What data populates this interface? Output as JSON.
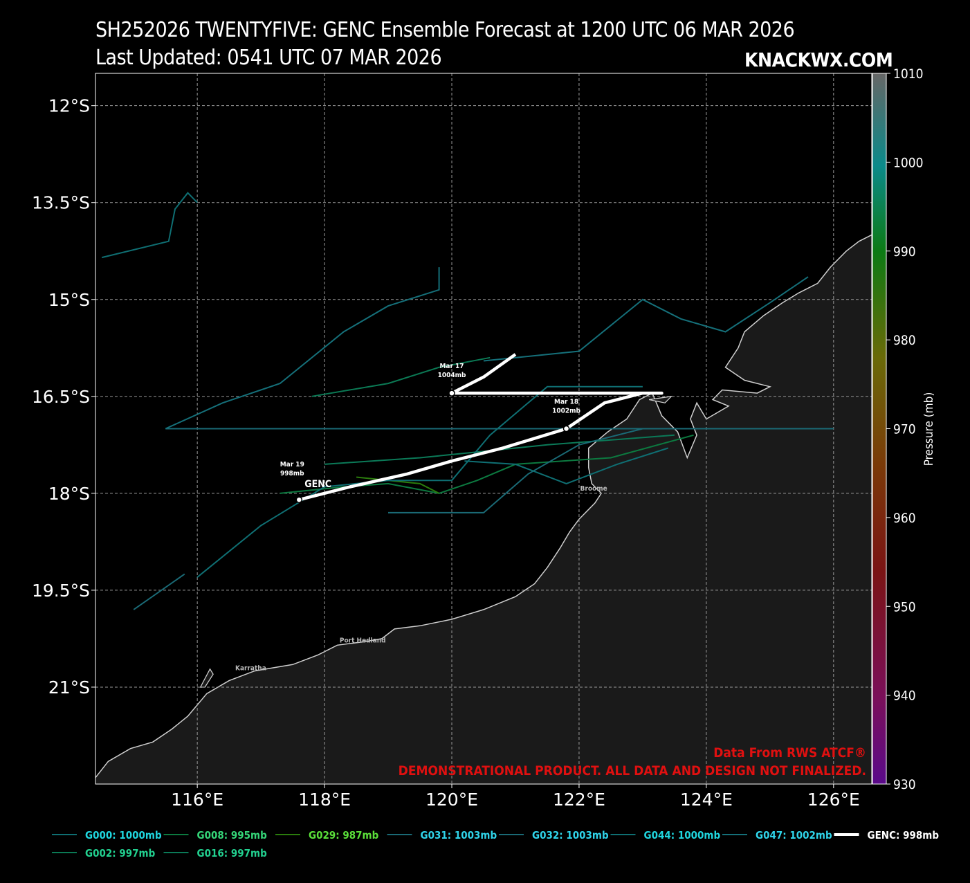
{
  "header": {
    "title": "SH252026 TWENTYFIVE: GENC Ensemble Forecast at 1200 UTC 06 MAR 2026",
    "updated": "Last Updated: 0541 UTC 07 MAR 2026",
    "brand": "KNACKWX.COM"
  },
  "map": {
    "lon_range": [
      114.4,
      126.6
    ],
    "lat_range": [
      -22.5,
      -11.5
    ],
    "lat_ticks": [
      {
        "v": -12,
        "label": "12°S"
      },
      {
        "v": -13.5,
        "label": "13.5°S"
      },
      {
        "v": -15,
        "label": "15°S"
      },
      {
        "v": -16.5,
        "label": "16.5°S"
      },
      {
        "v": -18,
        "label": "18°S"
      },
      {
        "v": -19.5,
        "label": "19.5°S"
      },
      {
        "v": -21,
        "label": "21°S"
      }
    ],
    "lon_ticks": [
      {
        "v": 116,
        "label": "116°E"
      },
      {
        "v": 118,
        "label": "118°E"
      },
      {
        "v": 120,
        "label": "120°E"
      },
      {
        "v": 122,
        "label": "122°E"
      },
      {
        "v": 124,
        "label": "124°E"
      },
      {
        "v": 126,
        "label": "126°E"
      }
    ],
    "grid": true,
    "ocean_color": "#000000",
    "land_color": "#1a1a1a",
    "coast_color": "#cfcfcf",
    "places": [
      {
        "name": "Broome",
        "lon": 122.23,
        "lat": -17.96
      },
      {
        "name": "Port Hedland",
        "lon": 118.6,
        "lat": -20.31
      },
      {
        "name": "Karratha",
        "lon": 116.84,
        "lat": -20.74
      }
    ],
    "coastline": [
      [
        114.4,
        -22.4
      ],
      [
        114.6,
        -22.15
      ],
      [
        114.95,
        -21.95
      ],
      [
        115.3,
        -21.85
      ],
      [
        115.6,
        -21.65
      ],
      [
        115.85,
        -21.45
      ],
      [
        116.15,
        -21.1
      ],
      [
        116.5,
        -20.9
      ],
      [
        116.9,
        -20.75
      ],
      [
        117.2,
        -20.7
      ],
      [
        117.5,
        -20.65
      ],
      [
        117.9,
        -20.5
      ],
      [
        118.2,
        -20.35
      ],
      [
        118.6,
        -20.3
      ],
      [
        118.9,
        -20.25
      ],
      [
        119.1,
        -20.1
      ],
      [
        119.5,
        -20.05
      ],
      [
        120.0,
        -19.95
      ],
      [
        120.5,
        -19.8
      ],
      [
        121.0,
        -19.6
      ],
      [
        121.3,
        -19.4
      ],
      [
        121.5,
        -19.15
      ],
      [
        121.7,
        -18.85
      ],
      [
        121.85,
        -18.6
      ],
      [
        122.0,
        -18.4
      ],
      [
        122.25,
        -18.15
      ],
      [
        122.35,
        -18.0
      ],
      [
        122.2,
        -17.85
      ],
      [
        122.15,
        -17.6
      ],
      [
        122.15,
        -17.3
      ],
      [
        122.45,
        -17.05
      ],
      [
        122.75,
        -16.85
      ],
      [
        122.95,
        -16.55
      ],
      [
        123.15,
        -16.45
      ],
      [
        123.3,
        -16.8
      ],
      [
        123.55,
        -17.05
      ],
      [
        123.7,
        -17.45
      ],
      [
        123.85,
        -17.1
      ],
      [
        123.75,
        -16.85
      ],
      [
        123.85,
        -16.6
      ],
      [
        124.0,
        -16.85
      ],
      [
        124.35,
        -16.65
      ],
      [
        124.1,
        -16.55
      ],
      [
        124.25,
        -16.4
      ],
      [
        124.8,
        -16.45
      ],
      [
        125.0,
        -16.35
      ],
      [
        124.6,
        -16.25
      ],
      [
        124.3,
        -16.05
      ],
      [
        124.5,
        -15.75
      ],
      [
        124.6,
        -15.5
      ],
      [
        124.9,
        -15.25
      ],
      [
        125.2,
        -15.05
      ],
      [
        125.45,
        -14.9
      ],
      [
        125.75,
        -14.75
      ],
      [
        125.95,
        -14.5
      ],
      [
        126.2,
        -14.25
      ],
      [
        126.4,
        -14.1
      ],
      [
        126.6,
        -14.0
      ]
    ],
    "islands": [
      [
        [
          116.05,
          -21.0
        ],
        [
          116.2,
          -20.72
        ],
        [
          116.25,
          -20.8
        ],
        [
          116.12,
          -21.0
        ]
      ],
      [
        [
          123.1,
          -16.55
        ],
        [
          123.45,
          -16.5
        ],
        [
          123.35,
          -16.6
        ]
      ]
    ],
    "colorbar": {
      "min": 930,
      "max": 1010,
      "ticks": [
        930,
        940,
        950,
        960,
        970,
        980,
        990,
        1000,
        1010
      ],
      "label": "Pressure (mb)"
    },
    "members": [
      {
        "name": "G000",
        "label": "G000: 1000mb",
        "color": "#0f6f73",
        "legend_color": "#1fd6df",
        "track": [
          [
            114.5,
            -14.35
          ],
          [
            115.55,
            -14.1
          ],
          [
            115.65,
            -13.6
          ],
          [
            115.85,
            -13.35
          ],
          [
            116.0,
            -13.5
          ]
        ]
      },
      {
        "name": "G002",
        "label": "G002: 997mb",
        "color": "#0b7a55",
        "legend_color": "#22d190",
        "track": [
          [
            117.8,
            -16.5
          ],
          [
            119.0,
            -16.3
          ],
          [
            119.8,
            -16.05
          ],
          [
            120.6,
            -15.9
          ]
        ]
      },
      {
        "name": "G008",
        "label": "G008: 995mb",
        "color": "#0c7a40",
        "legend_color": "#35d779",
        "track": [
          [
            117.3,
            -18.0
          ],
          [
            118.3,
            -17.9
          ],
          [
            119.0,
            -17.85
          ],
          [
            119.8,
            -18.0
          ],
          [
            120.4,
            -17.8
          ],
          [
            121.0,
            -17.55
          ],
          [
            122.5,
            -17.45
          ],
          [
            123.8,
            -17.1
          ]
        ]
      },
      {
        "name": "G016",
        "label": "G016: 997mb",
        "color": "#0b7a58",
        "legend_color": "#22d190",
        "track": [
          [
            118.0,
            -17.55
          ],
          [
            119.5,
            -17.45
          ],
          [
            120.5,
            -17.35
          ],
          [
            121.5,
            -17.25
          ],
          [
            123.5,
            -17.1
          ]
        ]
      },
      {
        "name": "G029",
        "label": "G029: 987mb",
        "color": "#2b7d0d",
        "legend_color": "#5be03a",
        "track": [
          [
            118.5,
            -17.75
          ],
          [
            119.5,
            -17.85
          ],
          [
            119.8,
            -18.0
          ]
        ]
      },
      {
        "name": "G031",
        "label": "G031: 1003mb",
        "color": "#1a6a76",
        "legend_color": "#2fd4ea",
        "track": [
          [
            115.5,
            -17.0
          ],
          [
            120.0,
            -17.0
          ],
          [
            123.0,
            -17.0
          ],
          [
            126.0,
            -17.0
          ]
        ]
      },
      {
        "name": "G032",
        "label": "G032: 1003mb",
        "color": "#1a6a76",
        "legend_color": "#2fd4ea",
        "track": [
          [
            115.0,
            -19.8
          ],
          [
            115.8,
            -19.25
          ]
        ],
        "extra": [
          [
            119.0,
            -18.3
          ],
          [
            120.5,
            -18.3
          ],
          [
            121.2,
            -17.7
          ],
          [
            122.0,
            -17.25
          ],
          [
            123.0,
            -17.0
          ]
        ]
      },
      {
        "name": "G044",
        "label": "G044: 1000mb",
        "color": "#0f6f73",
        "legend_color": "#1fd6df",
        "track": [
          [
            116.0,
            -19.3
          ],
          [
            117.0,
            -18.5
          ],
          [
            118.0,
            -17.9
          ],
          [
            119.0,
            -17.8
          ],
          [
            120.0,
            -17.8
          ],
          [
            120.6,
            -17.1
          ],
          [
            121.5,
            -16.35
          ],
          [
            123.0,
            -16.35
          ]
        ],
        "extra": [
          [
            120.2,
            -17.5
          ],
          [
            121.0,
            -17.55
          ],
          [
            121.8,
            -17.85
          ],
          [
            122.6,
            -17.55
          ],
          [
            123.4,
            -17.3
          ]
        ]
      },
      {
        "name": "G047",
        "label": "G047: 1002mb",
        "color": "#15707a",
        "legend_color": "#2fd4ea",
        "track": [
          [
            115.5,
            -17.0
          ],
          [
            116.4,
            -16.6
          ],
          [
            117.3,
            -16.3
          ],
          [
            118.3,
            -15.5
          ],
          [
            119.0,
            -15.1
          ],
          [
            119.8,
            -14.85
          ],
          [
            119.8,
            -14.5
          ]
        ],
        "extra": [
          [
            120.5,
            -15.95
          ],
          [
            122.0,
            -15.8
          ],
          [
            123.0,
            -15.0
          ],
          [
            123.6,
            -15.3
          ],
          [
            124.3,
            -15.5
          ],
          [
            125.0,
            -15.05
          ],
          [
            125.6,
            -14.65
          ]
        ]
      }
    ],
    "genc": {
      "label": "GENC: 998mb",
      "name_label": "GENC",
      "color": "#ffffff",
      "track": [
        [
          117.6,
          -18.1
        ],
        [
          118.4,
          -17.9
        ],
        [
          119.3,
          -17.7
        ],
        [
          120.0,
          -17.5
        ],
        [
          120.8,
          -17.3
        ],
        [
          121.8,
          -17.0
        ],
        [
          122.4,
          -16.6
        ],
        [
          123.0,
          -16.45
        ],
        [
          123.3,
          -16.45
        ],
        [
          120.1,
          -16.45
        ],
        [
          120.0,
          -16.45
        ],
        [
          120.5,
          -16.2
        ],
        [
          121.0,
          -15.85
        ]
      ],
      "markers": [
        {
          "lon": 120.0,
          "lat": -16.45,
          "date": "Mar 17",
          "pressure": "1004mb"
        },
        {
          "lon": 121.8,
          "lat": -17.0,
          "date": "Mar 18",
          "pressure": "1002mb"
        },
        {
          "lon": 117.6,
          "lat": -18.1,
          "date": "Mar 19",
          "pressure": "998mb"
        }
      ]
    }
  },
  "footer": {
    "source": "Data From RWS ATCF®",
    "disclaimer": "DEMONSTRATIONAL PRODUCT. ALL DATA AND DESIGN NOT FINALIZED.",
    "color": "#e01010"
  },
  "legend": {
    "rows": [
      [
        "G000",
        "G008",
        "G029",
        "G031",
        "G032",
        "G044",
        "G047",
        "GENC"
      ],
      [
        "G002",
        "G016"
      ]
    ]
  }
}
